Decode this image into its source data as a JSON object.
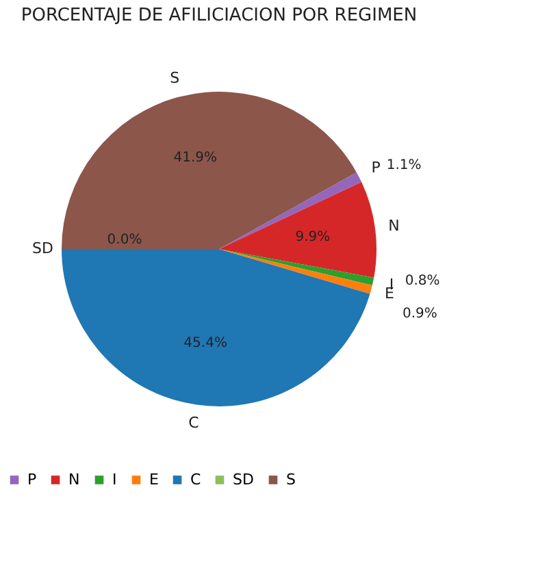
{
  "chart_data": {
    "type": "pie",
    "title": "PORCENTAJE DE AFILICIACION POR REGIMEN",
    "categories": [
      "P",
      "N",
      "I",
      "E",
      "C",
      "SD",
      "S"
    ],
    "values": [
      1.1,
      9.9,
      0.8,
      0.9,
      45.4,
      0.0,
      41.9
    ],
    "colors": [
      "#9467bd",
      "#d62728",
      "#2ca02c",
      "#ff7f0e",
      "#1f77b4",
      "#8cbf5a",
      "#8c564b"
    ],
    "value_labels": [
      "1.1%",
      "9.9%",
      "0.8%",
      "0.9%",
      "45.4%",
      "0.0%",
      "41.9%"
    ],
    "legend": "bottom"
  }
}
